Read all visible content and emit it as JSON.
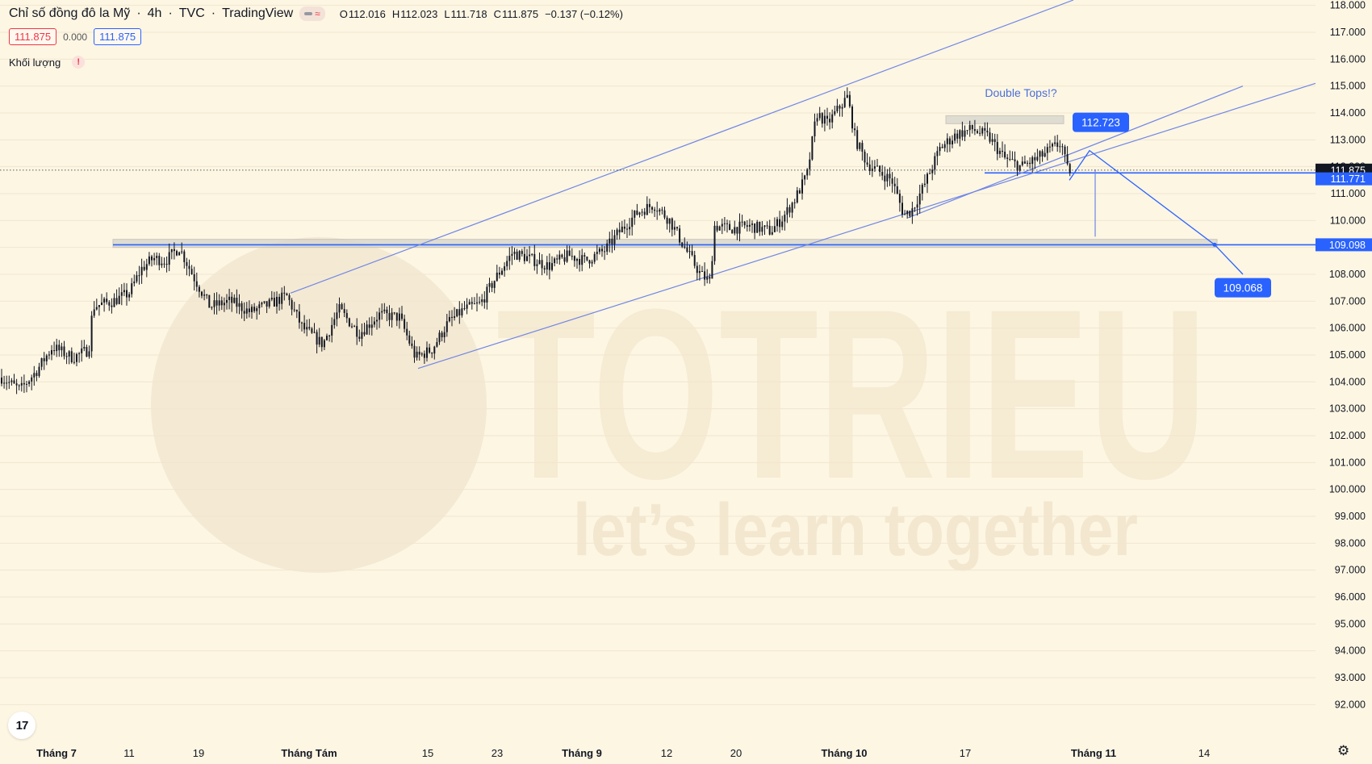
{
  "header": {
    "title": "Chỉ số đồng đô la Mỹ",
    "timeframe": "4h",
    "exchange": "TVC",
    "source": "TradingView",
    "badge_icon": "wave-icon",
    "ohlc": {
      "o_label": "O",
      "o": "112.016",
      "h_label": "H",
      "h": "112.023",
      "l_label": "L",
      "l": "111.718",
      "c_label": "C",
      "c": "111.875",
      "change": "−0.137 (−0.12%)"
    }
  },
  "price_row": {
    "bid": "111.875",
    "spread": "0.000",
    "ask": "111.875"
  },
  "volume": {
    "label": "Khối lượng",
    "warning": "!"
  },
  "colors": {
    "background": "#fdf6e3",
    "candle": "#131722",
    "trendline": "#6f86e6",
    "accent": "#2962ff",
    "zone": "#d6d4cc"
  },
  "chart_data": {
    "type": "candlestick",
    "ylim": [
      91.5,
      118.2
    ],
    "y_ticks": [
      "92.000",
      "93.000",
      "94.000",
      "95.000",
      "96.000",
      "97.000",
      "98.000",
      "99.000",
      "100.000",
      "101.000",
      "102.000",
      "103.000",
      "104.000",
      "105.000",
      "106.000",
      "107.000",
      "108.000",
      "109.000",
      "110.000",
      "111.000",
      "112.000",
      "113.000",
      "114.000",
      "115.000",
      "116.000",
      "117.000",
      "118.000"
    ],
    "x_ticks": [
      "Tháng 7",
      "11",
      "19",
      "Tháng Tám",
      "15",
      "23",
      "Tháng 9",
      "12",
      "20",
      "Tháng 10",
      "17",
      "Tháng 11",
      "14"
    ],
    "x_ticks_bold": [
      "Tháng 7",
      "Tháng Tám",
      "Tháng 9",
      "Tháng 10",
      "Tháng 11"
    ],
    "price_path": [
      [
        0,
        104.2
      ],
      [
        25,
        103.7
      ],
      [
        45,
        104.4
      ],
      [
        65,
        105.3
      ],
      [
        90,
        104.9
      ],
      [
        110,
        105.2
      ],
      [
        115,
        106.8
      ],
      [
        140,
        107.0
      ],
      [
        160,
        107.3
      ],
      [
        175,
        108.2
      ],
      [
        190,
        108.6
      ],
      [
        205,
        108.5
      ],
      [
        222,
        109.0
      ],
      [
        240,
        107.9
      ],
      [
        260,
        106.8
      ],
      [
        285,
        107.0
      ],
      [
        310,
        106.6
      ],
      [
        335,
        106.9
      ],
      [
        355,
        107.2
      ],
      [
        375,
        106.0
      ],
      [
        400,
        105.4
      ],
      [
        420,
        106.7
      ],
      [
        445,
        105.8
      ],
      [
        470,
        106.5
      ],
      [
        495,
        106.4
      ],
      [
        515,
        104.9
      ],
      [
        535,
        105.2
      ],
      [
        555,
        106.2
      ],
      [
        575,
        106.7
      ],
      [
        595,
        106.9
      ],
      [
        615,
        107.9
      ],
      [
        635,
        108.8
      ],
      [
        655,
        108.6
      ],
      [
        680,
        108.3
      ],
      [
        705,
        108.7
      ],
      [
        725,
        108.5
      ],
      [
        750,
        108.9
      ],
      [
        765,
        109.5
      ],
      [
        790,
        110.3
      ],
      [
        810,
        110.6
      ],
      [
        830,
        110.0
      ],
      [
        850,
        108.9
      ],
      [
        868,
        108.0
      ],
      [
        880,
        107.7
      ],
      [
        885,
        109.8
      ],
      [
        905,
        109.7
      ],
      [
        930,
        109.8
      ],
      [
        955,
        109.6
      ],
      [
        970,
        110.1
      ],
      [
        985,
        110.8
      ],
      [
        1000,
        111.7
      ],
      [
        1012,
        114.0
      ],
      [
        1025,
        113.6
      ],
      [
        1040,
        114.2
      ],
      [
        1050,
        114.6
      ],
      [
        1060,
        113.0
      ],
      [
        1075,
        112.1
      ],
      [
        1090,
        111.8
      ],
      [
        1105,
        111.5
      ],
      [
        1120,
        110.2
      ],
      [
        1130,
        110.4
      ],
      [
        1145,
        111.3
      ],
      [
        1165,
        112.7
      ],
      [
        1185,
        113.2
      ],
      [
        1205,
        113.4
      ],
      [
        1225,
        113.1
      ],
      [
        1245,
        112.3
      ],
      [
        1265,
        112.0
      ],
      [
        1285,
        112.3
      ],
      [
        1300,
        112.6
      ],
      [
        1315,
        112.9
      ],
      [
        1322,
        111.9
      ],
      [
        1330,
        111.9
      ]
    ],
    "zones": [
      {
        "x1": 140,
        "x2": 1508,
        "y_low": 109.0,
        "y_high": 109.3
      },
      {
        "x1": 1172,
        "x2": 1318,
        "y_low": 113.6,
        "y_high": 113.9
      }
    ],
    "hlines": [
      {
        "x1": 140,
        "x2": 1700,
        "y": 109.098
      },
      {
        "x1": 1220,
        "x2": 1700,
        "y": 111.771
      }
    ],
    "trendlines": [
      {
        "x1": 360,
        "y1": 107.3,
        "x2": 1330,
        "y2": 118.2
      },
      {
        "x1": 518,
        "y1": 104.5,
        "x2": 1630,
        "y2": 115.1
      },
      {
        "x1": 1125,
        "y1": 110.1,
        "x2": 1540,
        "y2": 115.0
      }
    ],
    "projection": [
      [
        1325,
        111.5
      ],
      [
        1350,
        112.6
      ],
      [
        1505,
        109.1
      ],
      [
        1540,
        108.0
      ]
    ],
    "measure": {
      "x": 1357,
      "y1": 111.9,
      "y2": 109.4
    },
    "current_price": "111.875",
    "current_price_value": 111.875,
    "annotation": {
      "text": "Double Tops!?",
      "x": 1265,
      "y": 114.6
    },
    "labels": [
      {
        "text": "112.723",
        "x": 1364,
        "y": 113.65
      },
      {
        "text": "109.068",
        "x": 1540,
        "y": 107.5
      }
    ],
    "axis_labels": [
      {
        "text": "111.875",
        "y": 111.875,
        "style": "dark"
      },
      {
        "text": "111.771",
        "y": 111.55,
        "style": "blue"
      },
      {
        "text": "109.098",
        "y": 109.098,
        "style": "blue"
      }
    ],
    "watermark": {
      "brand": "TOTRIEU",
      "slogan": "let’s learn together"
    }
  },
  "footer": {
    "logo": "tradingview-logo-icon",
    "logo_text": "17",
    "settings_icon": "gear-icon"
  }
}
